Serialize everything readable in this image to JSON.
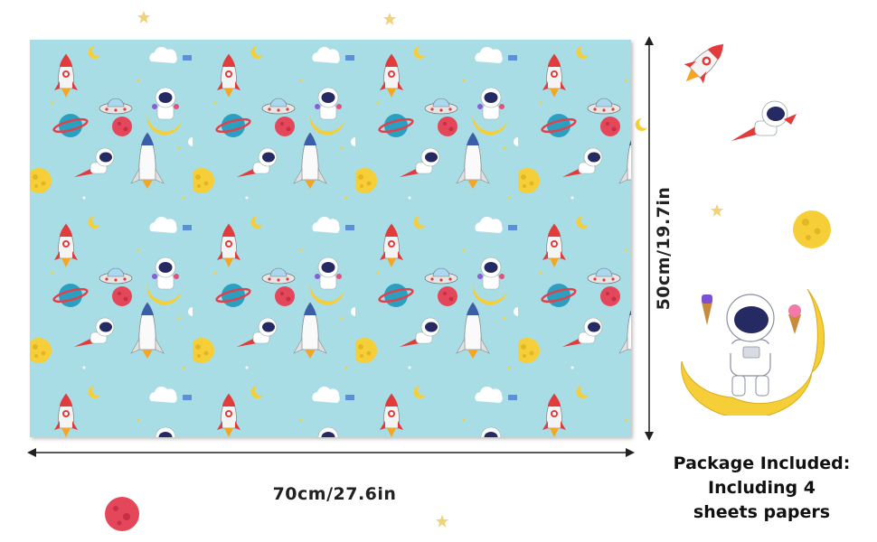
{
  "dimensions": {
    "width_label": "70cm/27.6in",
    "height_label": "50cm/19.7in"
  },
  "package": {
    "line1": "Package Included:",
    "line2": "Including 4",
    "line3": "sheets papers"
  },
  "colors": {
    "paper_background": "#a8dde6",
    "rocket_red": "#e23b3b",
    "moon_yellow": "#f6cf38",
    "planet_blue": "#2b9fbf",
    "planet_red": "#e5475a",
    "astronaut_suit": "#ffffff",
    "visor": "#262a63"
  },
  "icons": [
    "rocket-icon",
    "astronaut-icon",
    "moon-icon",
    "planet-icon",
    "space-shuttle-icon",
    "ufo-icon",
    "satellite-icon",
    "cloud-icon",
    "star-icon"
  ]
}
